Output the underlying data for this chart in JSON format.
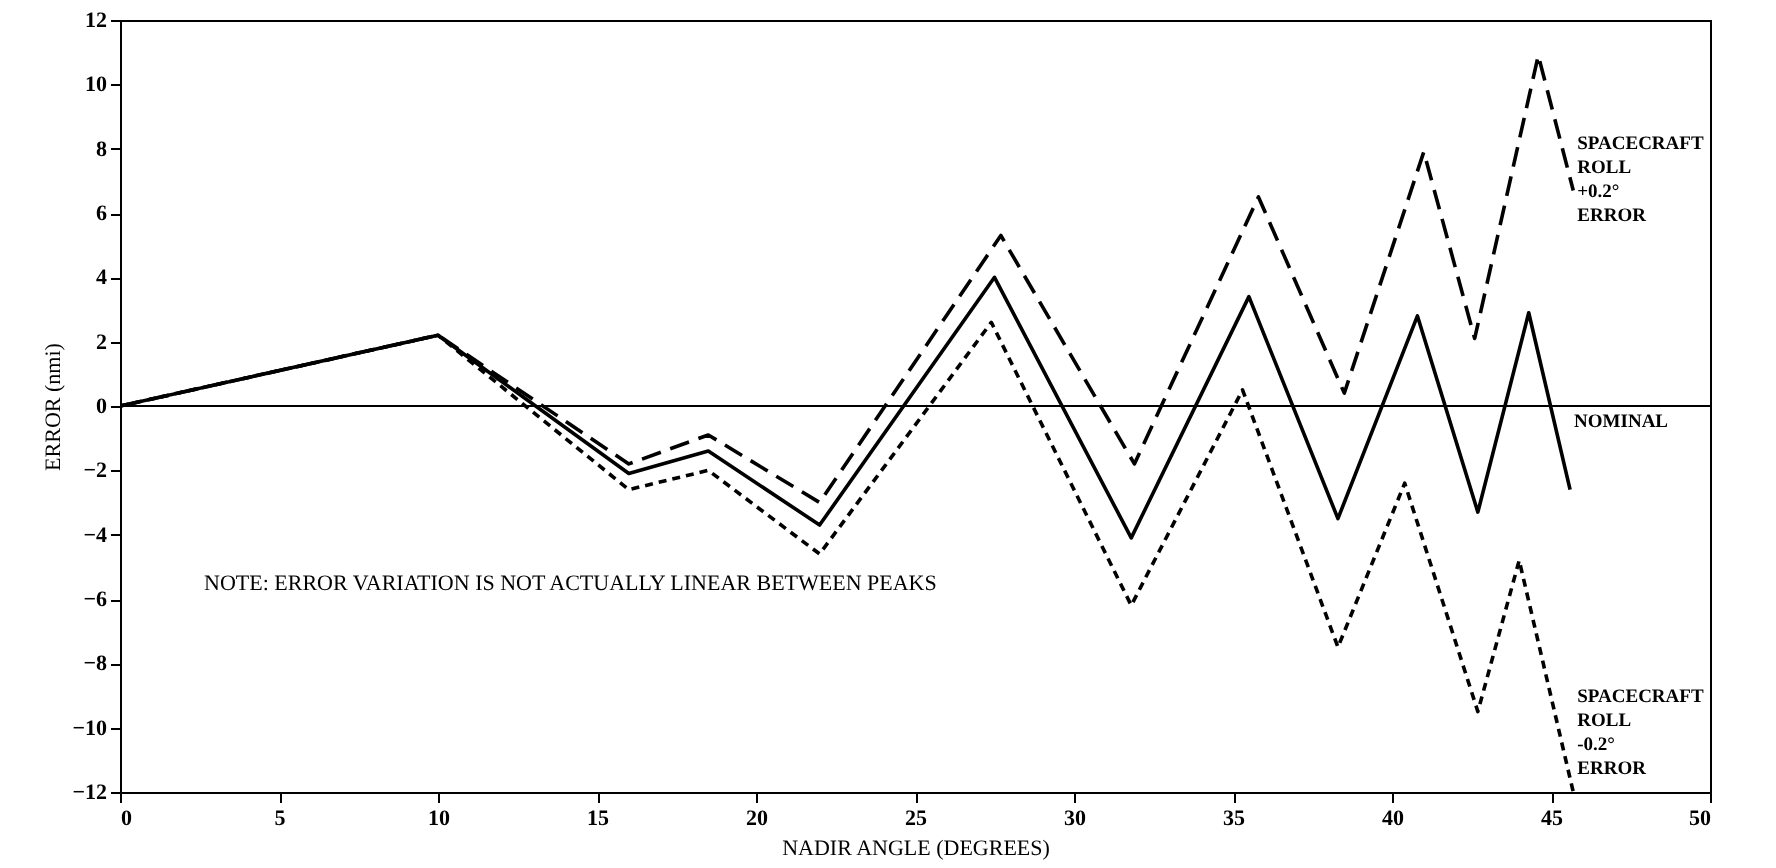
{
  "chart_data": {
    "type": "line",
    "xlabel": "NADIR ANGLE (DEGREES)",
    "ylabel": "ERROR (nmi)",
    "annotations": [
      "NOTE:  ERROR VARIATION IS NOT ACTUALLY LINEAR BETWEEN PEAKS"
    ],
    "xlim": [
      0,
      50
    ],
    "xticks": [
      0,
      5,
      10,
      15,
      20,
      25,
      30,
      35,
      40,
      45,
      50
    ],
    "ylim": [
      -12,
      12
    ],
    "yticks": [
      -12,
      -10,
      -8,
      -6,
      -4,
      -2,
      0,
      2,
      4,
      6,
      8,
      10,
      12
    ],
    "marker": "none",
    "ref_lines": [
      {
        "axis": "y",
        "value": 0,
        "color": "#000000",
        "line_style": "solid"
      }
    ],
    "series": [
      {
        "name": "SPACECRAFT ROLL +0.2° ERROR",
        "color": "#000000",
        "line_style": "dashed",
        "x": [
          0,
          10,
          16,
          18.5,
          22,
          27.7,
          31.9,
          35.8,
          38.5,
          41,
          42.6,
          44.6,
          45.7
        ],
        "values": [
          0,
          2.2,
          -1.8,
          -0.9,
          -3,
          5.3,
          -1.8,
          6.5,
          0.4,
          7.9,
          2.1,
          10.9,
          6.7
        ]
      },
      {
        "name": "NOMINAL",
        "color": "#000000",
        "line_style": "solid",
        "x": [
          0,
          10,
          16,
          18.5,
          22,
          27.5,
          31.8,
          35.5,
          38.3,
          40.8,
          42.7,
          44.3,
          45.6
        ],
        "values": [
          0,
          2.2,
          -2.1,
          -1.4,
          -3.7,
          4,
          -4.1,
          3.4,
          -3.5,
          2.8,
          -3.3,
          2.9,
          -2.6
        ]
      },
      {
        "name": "SPACECRAFT ROLL -0.2° ERROR",
        "color": "#000000",
        "line_style": "dotted",
        "x": [
          0,
          10,
          16,
          18.5,
          22,
          27.4,
          31.8,
          35.3,
          38.3,
          40.4,
          42.7,
          44,
          45.7
        ],
        "values": [
          0,
          2.2,
          -2.6,
          -2,
          -4.6,
          2.6,
          -6.2,
          0.5,
          -7.5,
          -2.4,
          -9.5,
          -4.8,
          -12
        ]
      }
    ]
  }
}
